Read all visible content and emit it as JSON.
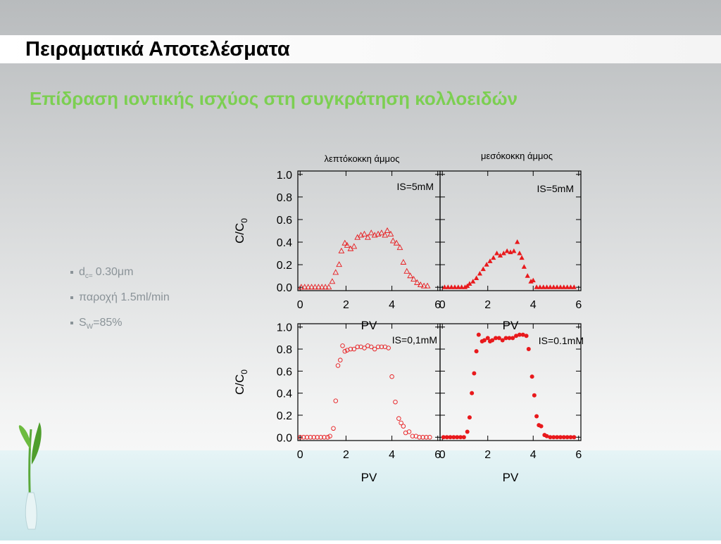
{
  "title": "Πειραματικά Αποτελέσματα",
  "subtitle": "Επίδραση ιοντικής ισχύος στη συγκράτηση κολλοειδών",
  "bullets": [
    {
      "main": "d",
      "sub": "c=",
      "rest": "0.30μm"
    },
    {
      "main": "παροχή 1.5ml/min"
    },
    {
      "main": "S",
      "sub": "W",
      "rest": "=85%"
    }
  ],
  "chart_data": [
    {
      "type": "scatter",
      "title": "λεπτόκοκκη άμμος",
      "annotation": "IS=5mM",
      "xlabel": "PV",
      "ylabel": [
        "C/C",
        "0"
      ],
      "color": "#e8191c",
      "marker": "triangle-open",
      "ytick_labels": true,
      "xlim": [
        -0.1,
        6.1
      ],
      "ylim": [
        -0.03,
        1.03
      ],
      "xticks": [
        0,
        2,
        4,
        6
      ],
      "yticks": [
        {
          "value": 0,
          "label": "0.0"
        },
        0.2,
        0.4,
        0.6,
        0.8,
        {
          "value": 1,
          "label": "1.0"
        }
      ],
      "x": [
        0.05,
        0.2,
        0.35,
        0.5,
        0.65,
        0.8,
        0.95,
        1.1,
        1.25,
        1.4,
        1.55,
        1.7,
        1.8,
        1.95,
        2.05,
        2.2,
        2.35,
        2.5,
        2.65,
        2.8,
        2.95,
        3.1,
        3.25,
        3.4,
        3.55,
        3.7,
        3.8,
        3.95,
        4.05,
        4.2,
        4.35,
        4.5,
        4.65,
        4.8,
        4.95,
        5.1,
        5.25,
        5.4,
        5.55
      ],
      "values": [
        0,
        0,
        0,
        0,
        0,
        0,
        0,
        0,
        0,
        0.05,
        0.13,
        0.2,
        0.32,
        0.39,
        0.37,
        0.34,
        0.36,
        0.44,
        0.46,
        0.47,
        0.44,
        0.48,
        0.46,
        0.47,
        0.48,
        0.46,
        0.5,
        0.47,
        0.41,
        0.39,
        0.35,
        0.22,
        0.14,
        0.1,
        0.07,
        0.04,
        0.02,
        0.01,
        0.01
      ]
    },
    {
      "type": "scatter",
      "title": "μεσόκοκκη άμμος",
      "annotation": "IS=5mM",
      "xlabel": "PV",
      "color": "#e8191c",
      "marker": "triangle",
      "ytick_labels": false,
      "xlim": [
        -0.1,
        6.1
      ],
      "ylim": [
        -0.03,
        1.03
      ],
      "xticks": [
        0,
        2,
        4,
        6
      ],
      "yticks": [
        0,
        0.2,
        0.4,
        0.6,
        0.8,
        1
      ],
      "x": [
        0.1,
        0.25,
        0.4,
        0.55,
        0.7,
        0.85,
        1.0,
        1.1,
        1.2,
        1.35,
        1.5,
        1.65,
        1.8,
        1.95,
        2.1,
        2.25,
        2.4,
        2.55,
        2.7,
        2.85,
        3.0,
        3.15,
        3.3,
        3.4,
        3.5,
        3.6,
        3.75,
        3.9,
        4.0,
        4.15,
        4.3,
        4.45,
        4.6,
        4.75,
        4.9,
        5.05,
        5.2,
        5.35,
        5.5,
        5.65,
        5.8
      ],
      "values": [
        0,
        0,
        0,
        0,
        0,
        0,
        0,
        0.01,
        0.03,
        0.05,
        0.08,
        0.12,
        0.16,
        0.2,
        0.23,
        0.26,
        0.3,
        0.28,
        0.3,
        0.32,
        0.31,
        0.32,
        0.4,
        0.3,
        0.26,
        0.18,
        0.1,
        0.05,
        0.06,
        0,
        0,
        0,
        0,
        0,
        0,
        0,
        0,
        0,
        0,
        0,
        0
      ]
    },
    {
      "type": "scatter",
      "annotation": "IS=0,1mM",
      "xlabel": "PV",
      "ylabel": [
        "C/C",
        "0"
      ],
      "color": "#e8191c",
      "marker": "circle-open",
      "ytick_labels": true,
      "xlim": [
        -0.1,
        6.1
      ],
      "ylim": [
        -0.03,
        1.03
      ],
      "xticks": [
        0,
        2,
        4,
        6
      ],
      "yticks": [
        {
          "value": 0,
          "label": "0.0"
        },
        0.2,
        0.4,
        0.6,
        0.8,
        {
          "value": 1,
          "label": "1.0"
        }
      ],
      "x": [
        0,
        0.15,
        0.3,
        0.45,
        0.6,
        0.75,
        0.9,
        1.05,
        1.2,
        1.3,
        1.45,
        1.55,
        1.65,
        1.75,
        1.85,
        1.95,
        2.05,
        2.2,
        2.35,
        2.5,
        2.65,
        2.8,
        2.95,
        3.1,
        3.25,
        3.4,
        3.55,
        3.7,
        3.85,
        4.0,
        4.15,
        4.3,
        4.4,
        4.5,
        4.6,
        4.75,
        4.9,
        5.05,
        5.2,
        5.35,
        5.5,
        5.65
      ],
      "values": [
        0,
        0,
        0,
        0,
        0,
        0,
        0,
        0,
        0,
        0.01,
        0.08,
        0.33,
        0.65,
        0.7,
        0.83,
        0.78,
        0.79,
        0.8,
        0.8,
        0.82,
        0.82,
        0.81,
        0.83,
        0.82,
        0.8,
        0.82,
        0.82,
        0.82,
        0.81,
        0.55,
        0.32,
        0.17,
        0.13,
        0.1,
        0.04,
        0.05,
        0.01,
        0.01,
        0,
        0,
        0,
        0
      ]
    },
    {
      "type": "scatter",
      "annotation": "IS=0.1mM",
      "xlabel": "PV",
      "color": "#e8191c",
      "marker": "circle",
      "ytick_labels": false,
      "xlim": [
        -0.1,
        6.1
      ],
      "ylim": [
        -0.03,
        1.03
      ],
      "xticks": [
        0,
        2,
        4,
        6
      ],
      "yticks": [
        0,
        0.2,
        0.4,
        0.6,
        0.8,
        1
      ],
      "x": [
        0.05,
        0.2,
        0.35,
        0.5,
        0.65,
        0.8,
        0.95,
        1.1,
        1.2,
        1.3,
        1.4,
        1.5,
        1.6,
        1.75,
        1.85,
        2.0,
        2.1,
        2.2,
        2.35,
        2.5,
        2.65,
        2.8,
        2.95,
        3.1,
        3.25,
        3.4,
        3.55,
        3.7,
        3.8,
        3.95,
        4.05,
        4.15,
        4.25,
        4.35,
        4.5,
        4.6,
        4.75,
        4.9,
        5.05,
        5.2,
        5.35,
        5.5,
        5.65,
        5.8
      ],
      "values": [
        0,
        0,
        0,
        0,
        0,
        0,
        0,
        0.05,
        0.18,
        0.4,
        0.58,
        0.78,
        0.93,
        0.87,
        0.88,
        0.9,
        0.87,
        0.88,
        0.9,
        0.9,
        0.88,
        0.9,
        0.9,
        0.9,
        0.92,
        0.93,
        0.93,
        0.92,
        0.8,
        0.55,
        0.38,
        0.19,
        0.11,
        0.1,
        0.02,
        0.01,
        0,
        0,
        0,
        0,
        0,
        0,
        0,
        0
      ]
    }
  ]
}
